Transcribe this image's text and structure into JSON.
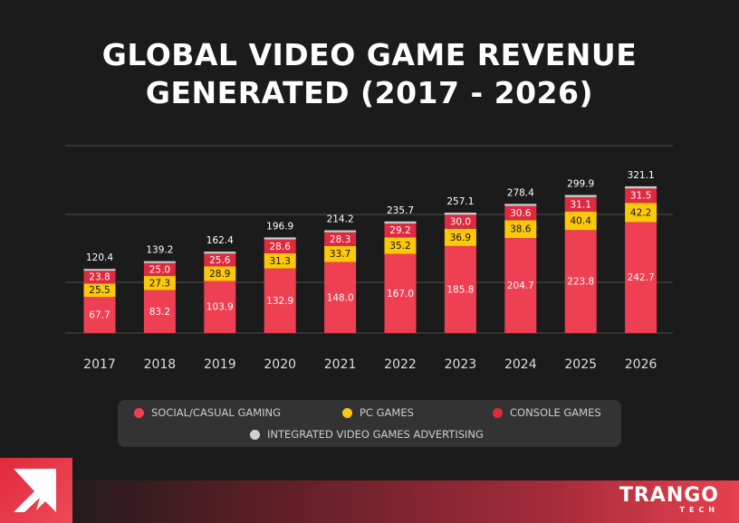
{
  "chart_data": {
    "type": "bar",
    "stacked": true,
    "title": "GLOBAL VIDEO GAME REVENUE GENERATED (2017 - 2026)",
    "categories": [
      "2017",
      "2018",
      "2019",
      "2020",
      "2021",
      "2022",
      "2023",
      "2024",
      "2025",
      "2026"
    ],
    "series": [
      {
        "name": "SOCIAL/CASUAL GAMING",
        "color": "#ef3f52",
        "values": [
          67.7,
          83.2,
          103.9,
          132.9,
          148.0,
          167.0,
          185.8,
          204.7,
          223.8,
          242.7
        ]
      },
      {
        "name": "PC GAMES",
        "color": "#fcc80a",
        "values": [
          25.5,
          27.3,
          28.9,
          31.3,
          33.7,
          35.2,
          36.9,
          38.6,
          40.4,
          42.2
        ]
      },
      {
        "name": "CONSOLE GAMES",
        "color": "#de2a3e",
        "values": [
          23.8,
          25.0,
          25.6,
          28.6,
          28.3,
          29.2,
          30.0,
          30.6,
          31.1,
          31.5
        ]
      },
      {
        "name": "INTEGRATED VIDEO GAMES ADVERTISING",
        "color": "#cfcfcf",
        "values": [
          3.4,
          3.7,
          4.0,
          4.1,
          4.2,
          4.3,
          4.4,
          4.5,
          4.6,
          4.7
        ]
      }
    ],
    "totals": [
      "120.4",
      "139.2",
      "162.4",
      "196.9",
      "214.2",
      "235.7",
      "257.1",
      "278.4",
      "299.9",
      "321.1"
    ],
    "grid": true,
    "legend": "bottom"
  },
  "title_line1": "GLOBAL VIDEO GAME REVENUE",
  "title_line2": "GENERATED (2017 - 2026)",
  "brand": {
    "name": "TRANGO",
    "sub": "TECH"
  }
}
